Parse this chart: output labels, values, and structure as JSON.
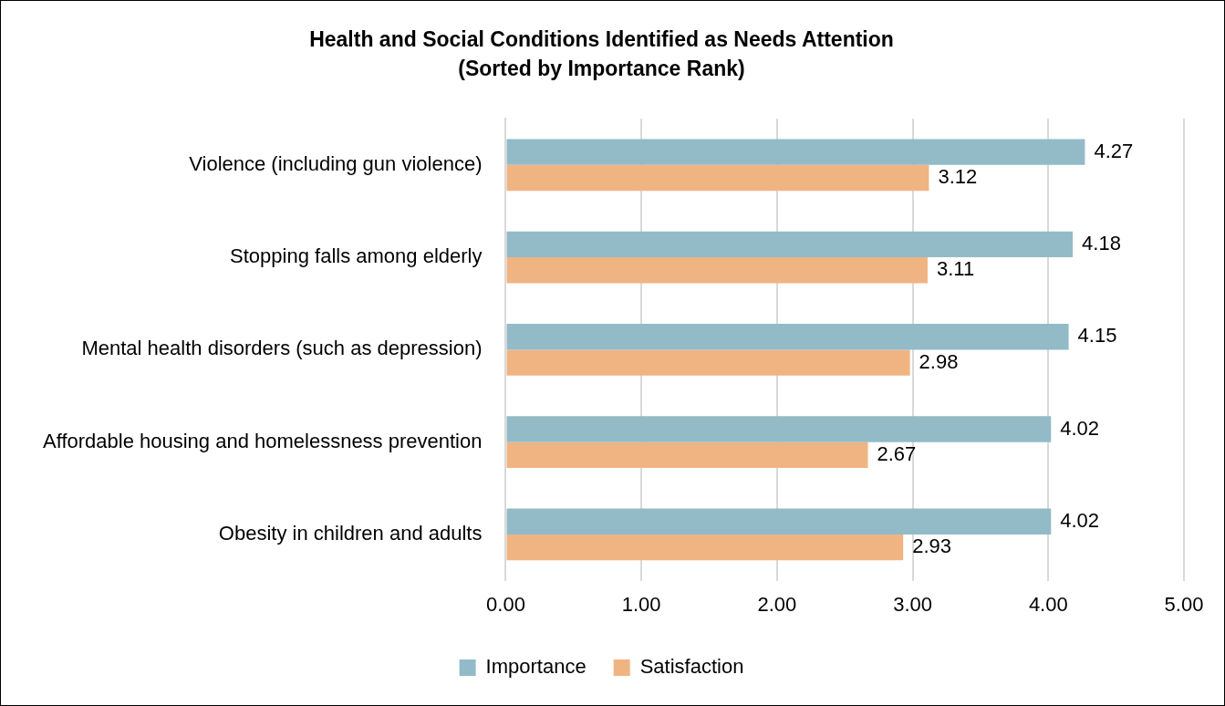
{
  "chart_data": {
    "type": "bar",
    "orientation": "horizontal",
    "title": "Health and Social Conditions Identified as Needs Attention",
    "subtitle": "(Sorted by Importance Rank)",
    "categories": [
      "Violence (including gun violence)",
      "Stopping falls among elderly",
      "Mental health disorders (such as depression)",
      "Affordable housing and homelessness prevention",
      "Obesity in children and adults"
    ],
    "series": [
      {
        "name": "Importance",
        "color": "#93bbc7",
        "values": [
          4.27,
          4.18,
          4.15,
          4.02,
          4.02
        ]
      },
      {
        "name": "Satisfaction",
        "color": "#f0b483",
        "values": [
          3.12,
          3.11,
          2.98,
          2.67,
          2.93
        ]
      }
    ],
    "xlim": [
      0,
      5
    ],
    "xticks": [
      {
        "value": 0,
        "label": "0.00"
      },
      {
        "value": 1,
        "label": "1.00"
      },
      {
        "value": 2,
        "label": "2.00"
      },
      {
        "value": 3,
        "label": "3.00"
      },
      {
        "value": 4,
        "label": "4.00"
      },
      {
        "value": 5,
        "label": "5.00"
      }
    ],
    "grid": "x",
    "legend": "bottom",
    "data_labels": true
  }
}
